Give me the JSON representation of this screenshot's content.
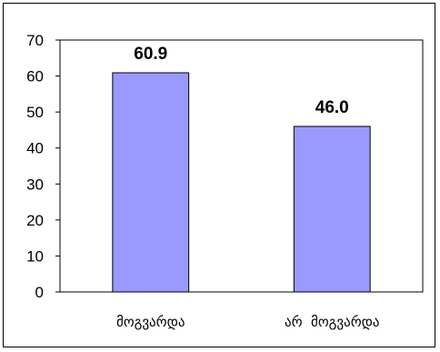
{
  "chart_data": {
    "type": "bar",
    "categories": [
      "მოგვარდა",
      "არ  მოგვარდა"
    ],
    "values": [
      60.9,
      46.0
    ],
    "value_labels": [
      "60.9",
      "46.0"
    ],
    "y_ticks": [
      "0",
      "10",
      "20",
      "30",
      "40",
      "50",
      "60",
      "70"
    ],
    "ylim": [
      0,
      70
    ],
    "grid": false,
    "title": "",
    "xlabel": "",
    "ylabel": "",
    "colors": {
      "bar": "#9999ff",
      "bar_stroke": "#000000",
      "axis": "#000000"
    }
  }
}
